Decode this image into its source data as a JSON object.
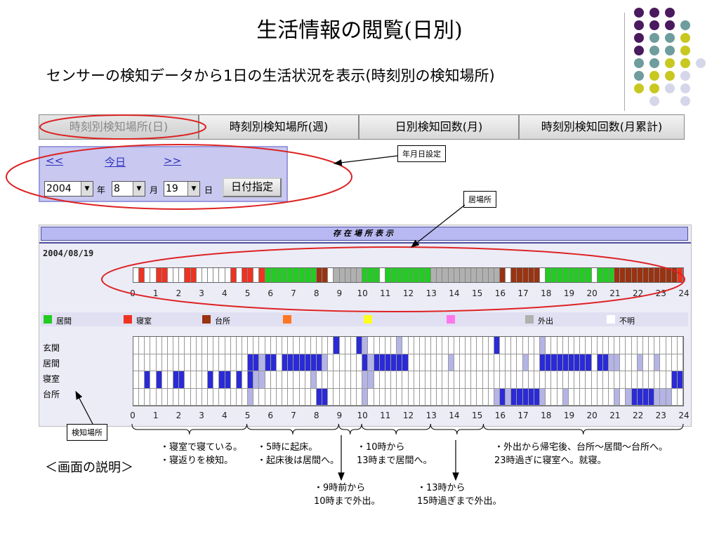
{
  "title": "生活情報の閲覧(日別)",
  "subtitle": "センサーの検知データから1日の生活状況を表示(時刻別の検知場所)",
  "colors": {
    "living": "#22cc22",
    "bedroom": "#ee3322",
    "kitchen": "#993311",
    "out": "#b0b0b0",
    "detect": "#2a2ad6",
    "detect_light": "#b4b4e6",
    "panel": "#c8c8f0"
  },
  "tabs": [
    {
      "label": "時刻別検知場所(日)",
      "active": true
    },
    {
      "label": "時刻別検知場所(週)",
      "active": false
    },
    {
      "label": "日別検知回数(月)",
      "active": false
    },
    {
      "label": "時刻別検知回数(月累計)",
      "active": false
    }
  ],
  "date_panel": {
    "prev": "<<",
    "today": "今日",
    "next": ">>",
    "year": "2004",
    "year_unit": "年",
    "month": "8",
    "month_unit": "月",
    "day": "19",
    "day_unit": "日",
    "submit": "日付指定"
  },
  "callouts": {
    "date_setting": "年月日設定",
    "location": "居場所",
    "detect_place": "検知場所"
  },
  "panel": {
    "header": "存在場所表示",
    "date": "2004/08/19",
    "hours": [
      "0",
      "1",
      "2",
      "3",
      "4",
      "5",
      "6",
      "7",
      "8",
      "9",
      "10",
      "11",
      "12",
      "13",
      "14",
      "15",
      "16",
      "17",
      "18",
      "19",
      "20",
      "21",
      "22",
      "23",
      "24"
    ],
    "legend": [
      {
        "label": "居間",
        "color": "#22cc22"
      },
      {
        "label": "寝室",
        "color": "#ee3322"
      },
      {
        "label": "台所",
        "color": "#993311"
      },
      {
        "label": "",
        "color": "#ff7722"
      },
      {
        "label": "",
        "color": "#ffff22"
      },
      {
        "label": "",
        "color": "#ff77ee"
      },
      {
        "label": "外出",
        "color": "#b0b0b0"
      },
      {
        "label": "不明",
        "color": "#ffffff"
      }
    ],
    "rooms": [
      "玄関",
      "居間",
      "寝室",
      "台所"
    ]
  },
  "annotations": {
    "a1": "・寝室で寝ている。\n・寝返りを検知。",
    "a2": "・5時に起床。\n・起床後は居間へ。",
    "a3": "・10時から\n13時まで居間へ。",
    "a4": "・外出から帰宅後、台所～居間～台所へ。\n23時過ぎに寝室へ。就寝。",
    "a5": "・9時前から\n10時まで外出。",
    "a6": "・13時から\n15時過ぎまで外出。"
  },
  "explain": "＜画面の説明＞"
}
